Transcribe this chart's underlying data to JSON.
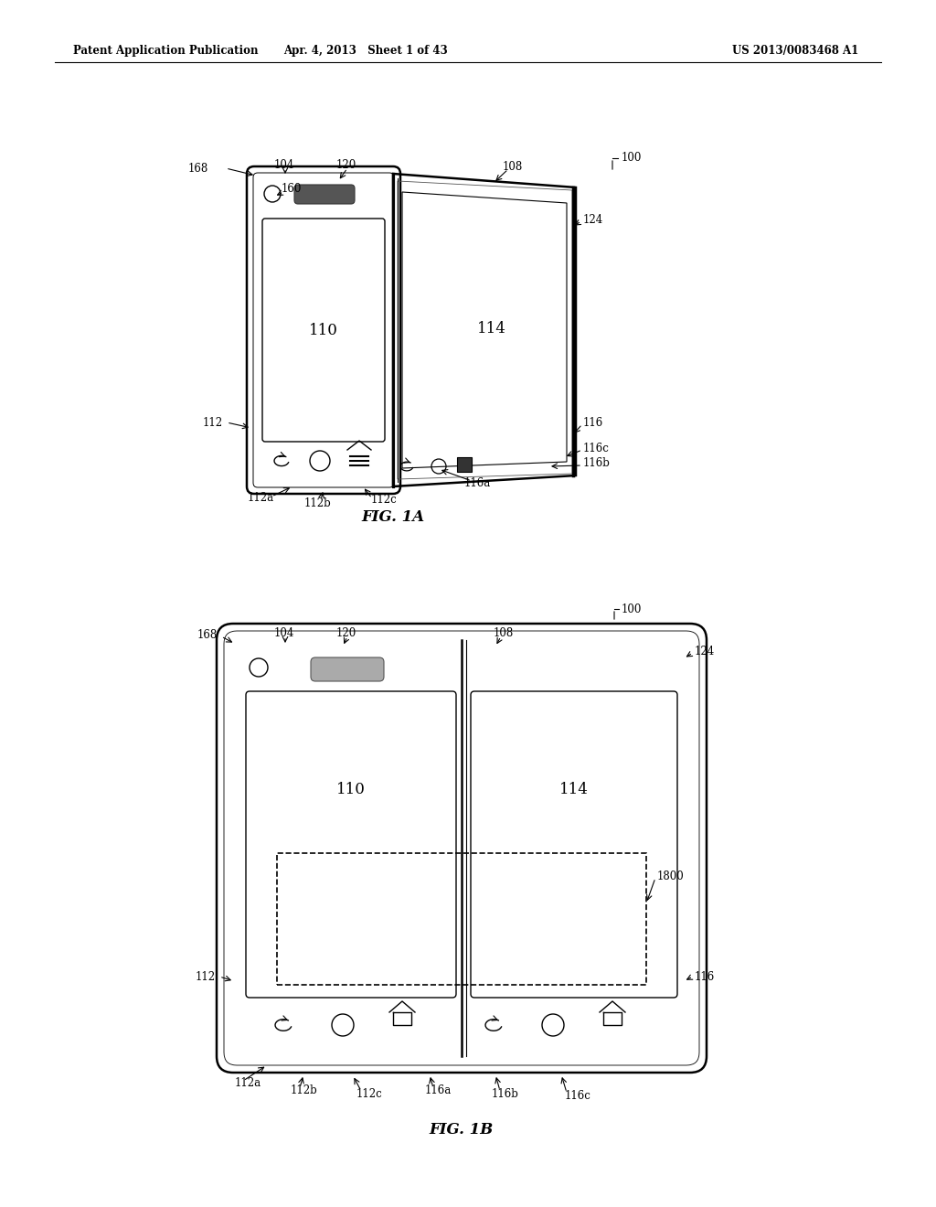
{
  "header_left": "Patent Application Publication",
  "header_mid": "Apr. 4, 2013   Sheet 1 of 43",
  "header_right": "US 2013/0083468 A1",
  "fig1a_label": "FIG. 1A",
  "fig1b_label": "FIG. 1B",
  "bg_color": "#ffffff",
  "line_color": "#000000"
}
